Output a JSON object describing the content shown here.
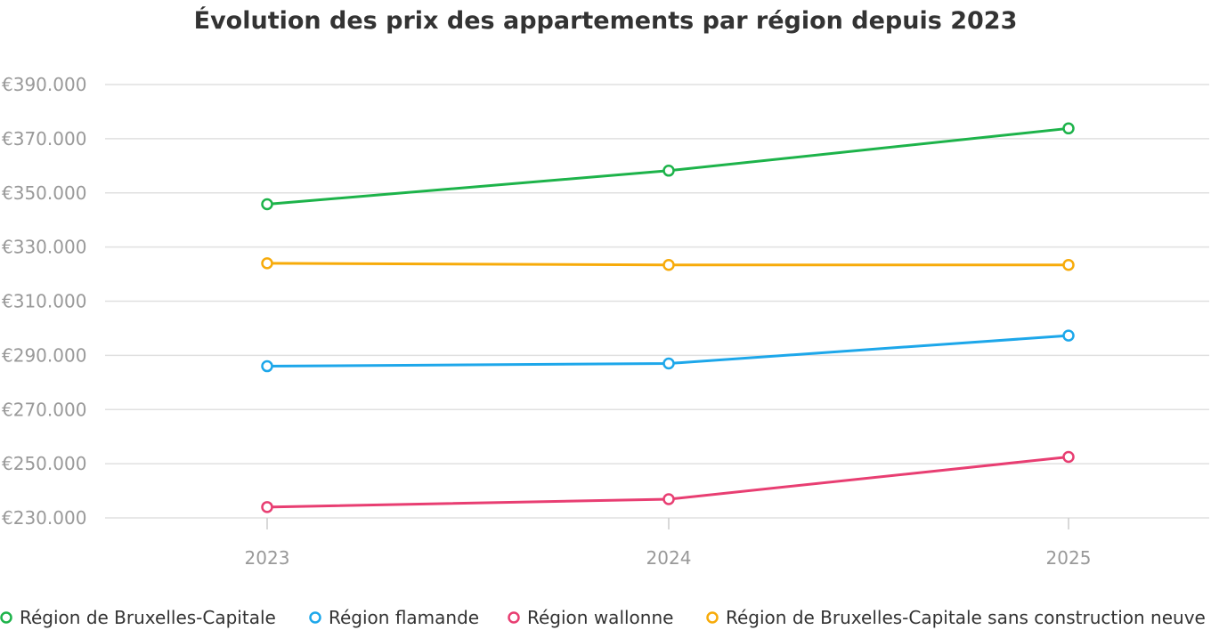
{
  "chart_data": {
    "type": "line",
    "title": "Évolution des prix des appartements par région depuis 2023",
    "categories": [
      "2023",
      "2024",
      "2025"
    ],
    "ylim": [
      230000,
      390000
    ],
    "y_ticks": [
      390000,
      370000,
      350000,
      330000,
      310000,
      290000,
      270000,
      250000,
      230000
    ],
    "y_tick_labels": [
      "€390.000",
      "€370.000",
      "€350.000",
      "€330.000",
      "€310.000",
      "€290.000",
      "€270.000",
      "€250.000",
      "€230.000"
    ],
    "grid": true,
    "legend_position": "bottom",
    "series": [
      {
        "name": "Région de Bruxelles-Capitale",
        "color": "#1db34a",
        "values": [
          345800,
          358200,
          373800
        ]
      },
      {
        "name": "Région flamande",
        "color": "#1da7ea",
        "values": [
          286000,
          287000,
          297300
        ]
      },
      {
        "name": "Région wallonne",
        "color": "#e83e72",
        "values": [
          234000,
          236900,
          252500
        ]
      },
      {
        "name": "Région de Bruxelles-Capitale sans construction neuve",
        "color": "#f7ab0a",
        "values": [
          324000,
          323400,
          323400
        ]
      }
    ]
  }
}
